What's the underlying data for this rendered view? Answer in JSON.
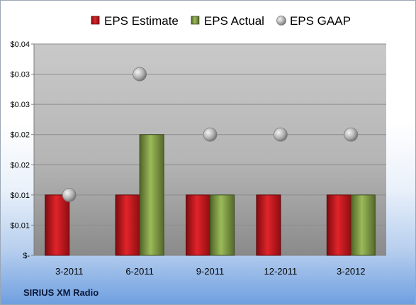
{
  "chart_data": {
    "type": "bar",
    "categories": [
      "3-2011",
      "6-2011",
      "9-2011",
      "12-2011",
      "3-2012"
    ],
    "series": [
      {
        "name": "EPS Estimate",
        "kind": "bar",
        "color": "#c4161c",
        "values": [
          0.01,
          0.01,
          0.01,
          0.01,
          0.01
        ]
      },
      {
        "name": "EPS Actual",
        "kind": "bar",
        "color": "#77933c",
        "values": [
          null,
          0.02,
          0.01,
          null,
          0.01
        ]
      },
      {
        "name": "EPS GAAP",
        "kind": "marker",
        "color": "#a6a6a6",
        "values": [
          0.01,
          0.03,
          0.02,
          0.02,
          0.02
        ]
      }
    ],
    "ytick_labels": [
      "$-",
      "$0.01",
      "$0.01",
      "$0.02",
      "$0.02",
      "$0.03",
      "$0.03",
      "$0.04"
    ],
    "ylim": [
      0,
      0.035
    ],
    "grid": true,
    "legend_position": "top",
    "title": "",
    "xlabel": "",
    "ylabel": ""
  },
  "company": "SIRIUS XM Radio"
}
